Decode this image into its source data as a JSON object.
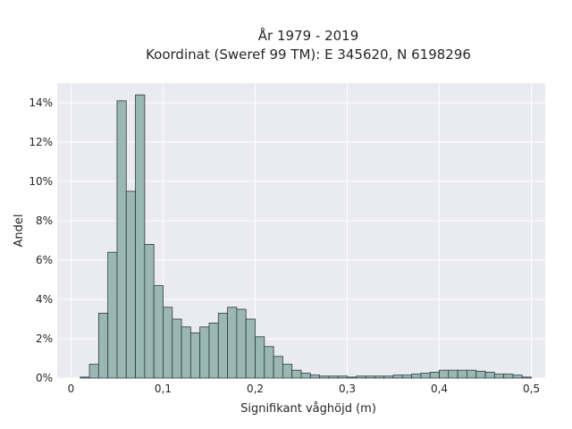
{
  "chart_data": {
    "type": "bar",
    "title_line1": "År 1979 - 2019",
    "title_line2": "Koordinat (Sweref 99 TM): E 345620, N 6198296",
    "xlabel": "Signifikant våghöjd (m)",
    "ylabel": "Andel",
    "xlim": [
      -0.015,
      0.515
    ],
    "ylim": [
      0,
      15
    ],
    "grid": true,
    "x_ticks": [
      {
        "value": 0,
        "label": "0"
      },
      {
        "value": 0.1,
        "label": "0,1"
      },
      {
        "value": 0.2,
        "label": "0,2"
      },
      {
        "value": 0.3,
        "label": "0,3"
      },
      {
        "value": 0.4,
        "label": "0,4"
      },
      {
        "value": 0.5,
        "label": "0,5"
      }
    ],
    "y_ticks": [
      {
        "value": 0,
        "label": "0%"
      },
      {
        "value": 2,
        "label": "2%"
      },
      {
        "value": 4,
        "label": "4%"
      },
      {
        "value": 6,
        "label": "6%"
      },
      {
        "value": 8,
        "label": "8%"
      },
      {
        "value": 10,
        "label": "10%"
      },
      {
        "value": 12,
        "label": "12%"
      },
      {
        "value": 14,
        "label": "14%"
      }
    ],
    "bin_width": 0.01,
    "bin_starts": [
      0.01,
      0.02,
      0.03,
      0.04,
      0.05,
      0.06,
      0.07,
      0.08,
      0.09,
      0.1,
      0.11,
      0.12,
      0.13,
      0.14,
      0.15,
      0.16,
      0.17,
      0.18,
      0.19,
      0.2,
      0.21,
      0.22,
      0.23,
      0.24,
      0.25,
      0.26,
      0.27,
      0.28,
      0.29,
      0.3,
      0.31,
      0.32,
      0.33,
      0.34,
      0.35,
      0.36,
      0.37,
      0.38,
      0.39,
      0.4,
      0.41,
      0.42,
      0.43,
      0.44,
      0.45,
      0.46,
      0.47,
      0.48,
      0.49
    ],
    "values": [
      0.05,
      0.7,
      3.3,
      6.4,
      14.1,
      9.5,
      14.4,
      6.8,
      4.7,
      3.6,
      3.0,
      2.6,
      2.3,
      2.6,
      2.8,
      3.3,
      3.6,
      3.5,
      3.0,
      2.1,
      1.6,
      1.1,
      0.7,
      0.4,
      0.25,
      0.15,
      0.1,
      0.1,
      0.1,
      0.05,
      0.1,
      0.1,
      0.1,
      0.1,
      0.15,
      0.15,
      0.2,
      0.25,
      0.3,
      0.4,
      0.4,
      0.4,
      0.4,
      0.35,
      0.3,
      0.2,
      0.2,
      0.15,
      0.05
    ],
    "colors": {
      "bar_fill": "#9ab7b4",
      "bar_edge": "#2b3b39",
      "plot_bg": "#eaeaf2",
      "grid": "#ffffff"
    }
  }
}
